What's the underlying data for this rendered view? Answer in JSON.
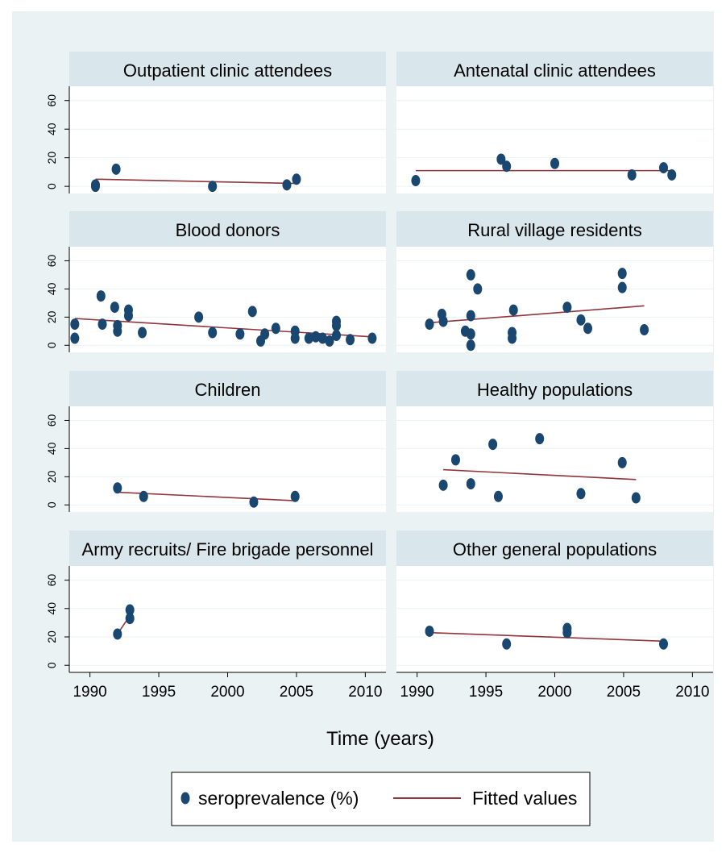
{
  "chart_data": {
    "type": "scatter",
    "xlabel": "Time (years)",
    "ylabel": "",
    "xlim": [
      1988.5,
      2011.5
    ],
    "ylim": [
      -5,
      70
    ],
    "x_ticks": [
      1990,
      1995,
      2000,
      2005,
      2010
    ],
    "y_ticks": [
      0,
      20,
      40,
      60
    ],
    "legend": {
      "placement": "bottom",
      "entries": [
        {
          "label": "seroprevalence (%)",
          "kind": "marker"
        },
        {
          "label": "Fitted values",
          "kind": "line"
        }
      ]
    },
    "colors": {
      "marker": "#1a476f",
      "fit": "#90353b",
      "panel_header": "#d9e6eb",
      "background": "#eaf2f3"
    },
    "panels": [
      {
        "title": "Outpatient clinic attendees",
        "points": [
          [
            1990.4,
            0
          ],
          [
            1990.4,
            1
          ],
          [
            1991.9,
            12
          ],
          [
            1998.9,
            0
          ],
          [
            2004.3,
            1
          ],
          [
            2005.0,
            5
          ]
        ],
        "fit": [
          [
            1990.4,
            5
          ],
          [
            2005.0,
            2
          ]
        ]
      },
      {
        "title": "Antenatal clinic attendees",
        "points": [
          [
            1989.9,
            4
          ],
          [
            1996.1,
            19
          ],
          [
            1996.5,
            14
          ],
          [
            2000.0,
            16
          ],
          [
            2005.6,
            8
          ],
          [
            2007.9,
            13
          ],
          [
            2008.5,
            8
          ]
        ],
        "fit": [
          [
            1989.9,
            11
          ],
          [
            2008.5,
            11
          ]
        ]
      },
      {
        "title": "Blood donors",
        "points": [
          [
            1988.9,
            15
          ],
          [
            1988.9,
            5
          ],
          [
            1990.8,
            35
          ],
          [
            1990.9,
            15
          ],
          [
            1991.8,
            27
          ],
          [
            1992.0,
            14
          ],
          [
            1992.0,
            10
          ],
          [
            1992.8,
            25
          ],
          [
            1992.8,
            21
          ],
          [
            1993.8,
            9
          ],
          [
            1997.9,
            20
          ],
          [
            1998.9,
            9
          ],
          [
            2000.9,
            8
          ],
          [
            2001.8,
            24
          ],
          [
            2002.4,
            3
          ],
          [
            2002.7,
            8
          ],
          [
            2003.5,
            12
          ],
          [
            2004.9,
            10
          ],
          [
            2004.9,
            5
          ],
          [
            2005.9,
            5
          ],
          [
            2006.4,
            6
          ],
          [
            2006.9,
            5
          ],
          [
            2007.4,
            3
          ],
          [
            2007.9,
            17
          ],
          [
            2007.9,
            14
          ],
          [
            2007.9,
            7
          ],
          [
            2008.9,
            4
          ],
          [
            2010.5,
            5
          ]
        ],
        "fit": [
          [
            1988.9,
            19
          ],
          [
            2010.5,
            6
          ]
        ]
      },
      {
        "title": "Rural village residents",
        "points": [
          [
            1990.9,
            15
          ],
          [
            1991.8,
            22
          ],
          [
            1991.9,
            17
          ],
          [
            1993.5,
            10
          ],
          [
            1993.9,
            50
          ],
          [
            1993.9,
            21
          ],
          [
            1993.9,
            8
          ],
          [
            1993.9,
            0
          ],
          [
            1994.4,
            40
          ],
          [
            1996.9,
            9
          ],
          [
            1996.9,
            5
          ],
          [
            1997.0,
            25
          ],
          [
            2000.9,
            27
          ],
          [
            2001.9,
            18
          ],
          [
            2002.4,
            12
          ],
          [
            2004.9,
            51
          ],
          [
            2004.9,
            41
          ],
          [
            2006.5,
            11
          ]
        ],
        "fit": [
          [
            1990.9,
            16
          ],
          [
            2006.5,
            28
          ]
        ]
      },
      {
        "title": "Children",
        "points": [
          [
            1992.0,
            12
          ],
          [
            1993.9,
            6
          ],
          [
            2001.9,
            2
          ],
          [
            2004.9,
            6
          ]
        ],
        "fit": [
          [
            1992.0,
            9
          ],
          [
            2004.9,
            3
          ]
        ]
      },
      {
        "title": "Healthy populations",
        "points": [
          [
            1991.9,
            14
          ],
          [
            1992.8,
            32
          ],
          [
            1993.9,
            15
          ],
          [
            1995.5,
            43
          ],
          [
            1995.9,
            6
          ],
          [
            1998.9,
            47
          ],
          [
            2001.9,
            8
          ],
          [
            2004.9,
            30
          ],
          [
            2005.9,
            5
          ]
        ],
        "fit": [
          [
            1991.9,
            25
          ],
          [
            2005.9,
            18
          ]
        ]
      },
      {
        "title": "Army recruits/ Fire brigade personnel",
        "points": [
          [
            1992.0,
            22
          ],
          [
            1992.9,
            39
          ],
          [
            1992.9,
            33
          ]
        ],
        "fit": [
          [
            1992.0,
            22
          ],
          [
            1992.9,
            35
          ]
        ]
      },
      {
        "title": "Other general populations",
        "points": [
          [
            1990.9,
            24
          ],
          [
            1996.5,
            15
          ],
          [
            2000.9,
            26
          ],
          [
            2000.9,
            23
          ],
          [
            2007.9,
            15
          ]
        ],
        "fit": [
          [
            1990.9,
            23
          ],
          [
            2007.9,
            17
          ]
        ]
      }
    ]
  }
}
